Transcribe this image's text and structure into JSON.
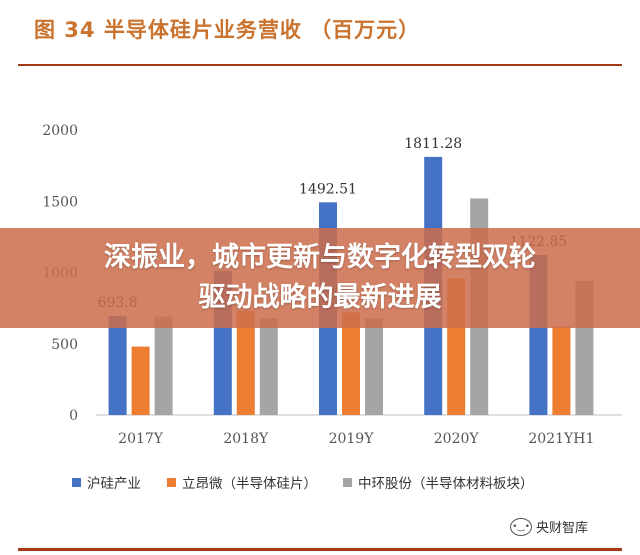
{
  "figure": {
    "title": "图  34  半导体硅片业务营收  （百万元）"
  },
  "banner": {
    "line1": "深振业，城市更新与数字化转型双轮",
    "line2": "驱动战略的最新进展"
  },
  "watermark": {
    "text": "央财智库",
    "icon": "wechat-icon"
  },
  "colors": {
    "rule": "#a43a16",
    "title": "#c9732e",
    "series": [
      "#4472c4",
      "#ed7d31",
      "#a5a5a5"
    ]
  },
  "chart_data": {
    "type": "bar",
    "title": "半导体硅片业务营收",
    "xlabel": "",
    "ylabel": "",
    "ylim": [
      0,
      2000
    ],
    "yticks": [
      0,
      500,
      1000,
      1500,
      2000
    ],
    "ytick_labels": [
      "0",
      "500",
      "1000",
      "1500",
      "2000"
    ],
    "grid": false,
    "legend_position": "bottom",
    "categories": [
      "2017Y",
      "2018Y",
      "2019Y",
      "2020Y",
      "2021YH1"
    ],
    "series": [
      {
        "name": "沪硅产业",
        "color": "#4472c4",
        "values": [
          693.8,
          1010,
          1492.51,
          1811.28,
          1122.85
        ],
        "labels": [
          "693.8",
          "",
          "1492.51",
          "1811.28",
          "1122.85"
        ]
      },
      {
        "name": "立昂微（半导体硅片）",
        "color": "#ed7d31",
        "values": [
          480,
          730,
          720,
          960,
          620
        ],
        "labels": [
          "",
          "",
          "",
          "",
          ""
        ]
      },
      {
        "name": "中环股份（半导体材料板块）",
        "color": "#a5a5a5",
        "values": [
          690,
          680,
          680,
          1520,
          940
        ],
        "labels": [
          "",
          "",
          "",
          "",
          ""
        ]
      }
    ]
  }
}
